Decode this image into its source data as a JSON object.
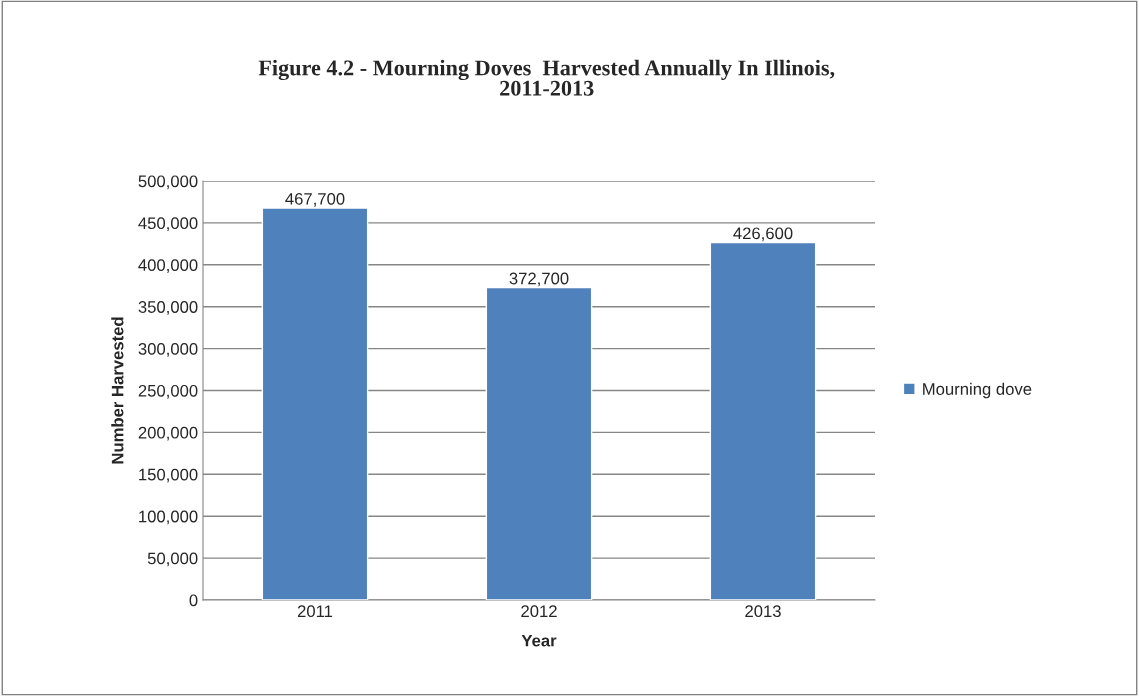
{
  "chart_data": {
    "type": "bar",
    "title": "Figure 4.2 - Mourning Doves  Harvested Annually In Illinois,\n2011-2013",
    "xlabel": "Year",
    "ylabel": "Number Harvested",
    "categories": [
      "2011",
      "2012",
      "2013"
    ],
    "series": [
      {
        "name": "Mourning dove",
        "color": "#4f81bd",
        "values": [
          467700,
          372700,
          426600
        ],
        "value_labels": [
          "467,700",
          "372,700",
          "426,600"
        ]
      }
    ],
    "ylim": [
      0,
      500000
    ],
    "yticks": [
      0,
      {
        "value": 50000,
        "label": "50,000"
      },
      {
        "value": 100000,
        "label": "100,000"
      },
      {
        "value": 150000,
        "label": "150,000"
      },
      {
        "value": 200000,
        "label": "200,000"
      },
      {
        "value": 250000,
        "label": "250,000"
      },
      {
        "value": 300000,
        "label": "300,000"
      },
      {
        "value": 350000,
        "label": "350,000"
      },
      {
        "value": 400000,
        "label": "400,000"
      },
      {
        "value": 450000,
        "label": "450,000"
      },
      {
        "value": 500000,
        "label": "500,000"
      }
    ],
    "grid": "y",
    "legend": "right"
  }
}
